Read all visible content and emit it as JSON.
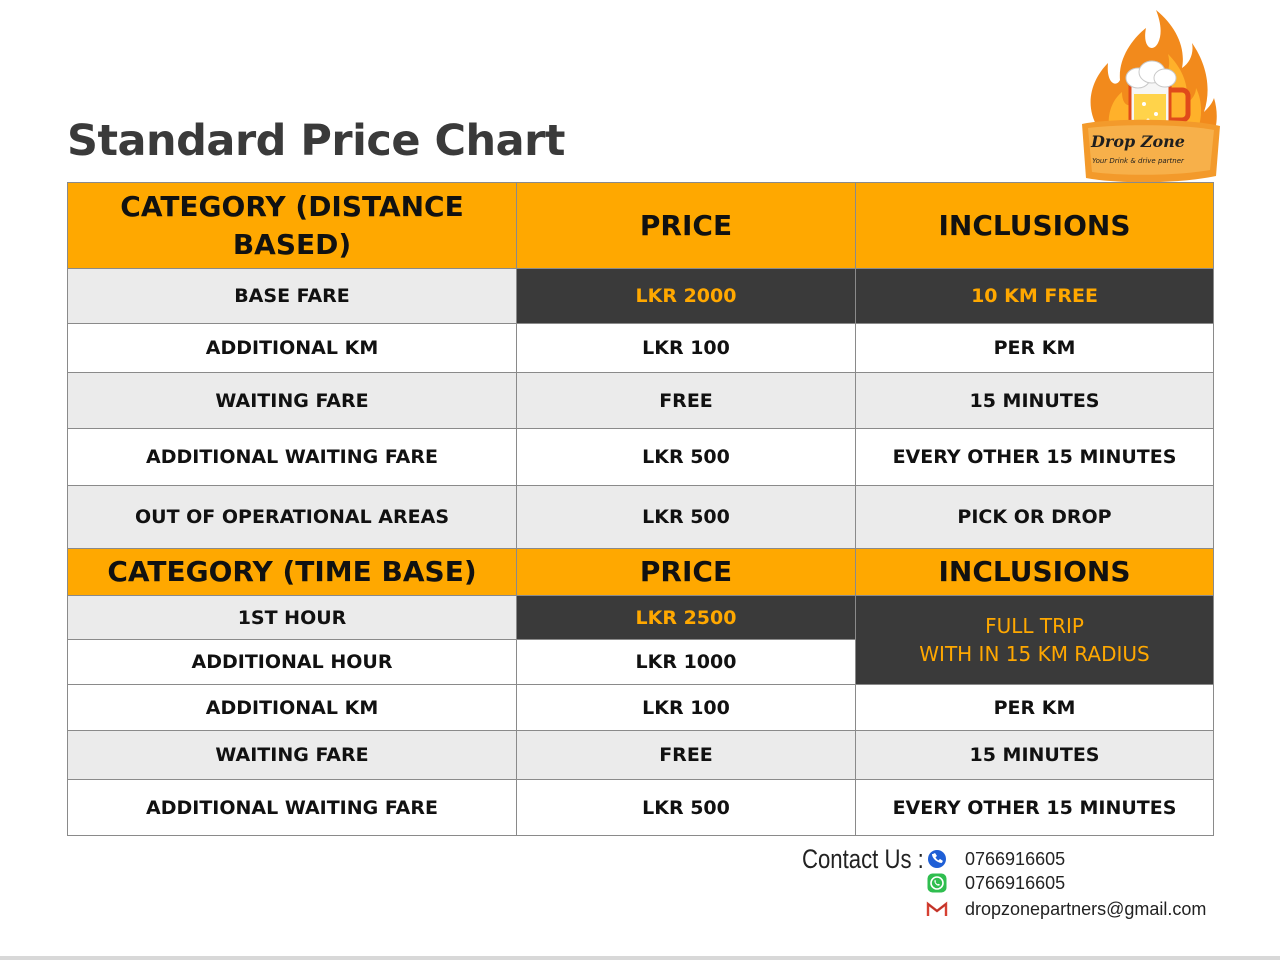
{
  "title": "Standard Price Chart",
  "logo": {
    "name": "Drop Zone",
    "tagline": "Your Drink & drive partner"
  },
  "distance_section": {
    "headers": [
      "CATEGORY (DISTANCE BASED)",
      "PRICE",
      "INCLUSIONS"
    ],
    "rows": [
      [
        "BASE FARE",
        "LKR 2000",
        "10 KM FREE"
      ],
      [
        "ADDITIONAL KM",
        "LKR 100",
        "PER KM"
      ],
      [
        "WAITING FARE",
        "FREE",
        "15 MINUTES"
      ],
      [
        "ADDITIONAL WAITING FARE",
        "LKR 500",
        "EVERY OTHER 15 MINUTES"
      ],
      [
        "OUT OF OPERATIONAL AREAS",
        "LKR 500",
        "PICK OR DROP"
      ]
    ]
  },
  "time_section": {
    "headers": [
      "CATEGORY (TIME BASE)",
      "PRICE",
      "INCLUSIONS"
    ],
    "rows": [
      [
        "1ST HOUR",
        "LKR 2500",
        "FULL TRIP"
      ],
      [
        "ADDITIONAL HOUR",
        "LKR 1000",
        "WITH IN 15 KM RADIUS"
      ],
      [
        "ADDITIONAL KM",
        "LKR 100",
        "PER KM"
      ],
      [
        "WAITING FARE",
        "FREE",
        "15 MINUTES"
      ],
      [
        "ADDITIONAL WAITING FARE",
        "LKR 500",
        "EVERY OTHER 15 MINUTES"
      ]
    ]
  },
  "contact": {
    "label": "Contact Us :",
    "phone": "0766916605",
    "whatsapp": "0766916605",
    "email": "dropzonepartners@gmail.com"
  },
  "colors": {
    "accent": "#ffa800",
    "dark": "#3a3a3a",
    "row_gray": "#ebebeb"
  },
  "icons": [
    "phone-icon",
    "whatsapp-icon",
    "gmail-icon",
    "beer-mug-icon"
  ]
}
